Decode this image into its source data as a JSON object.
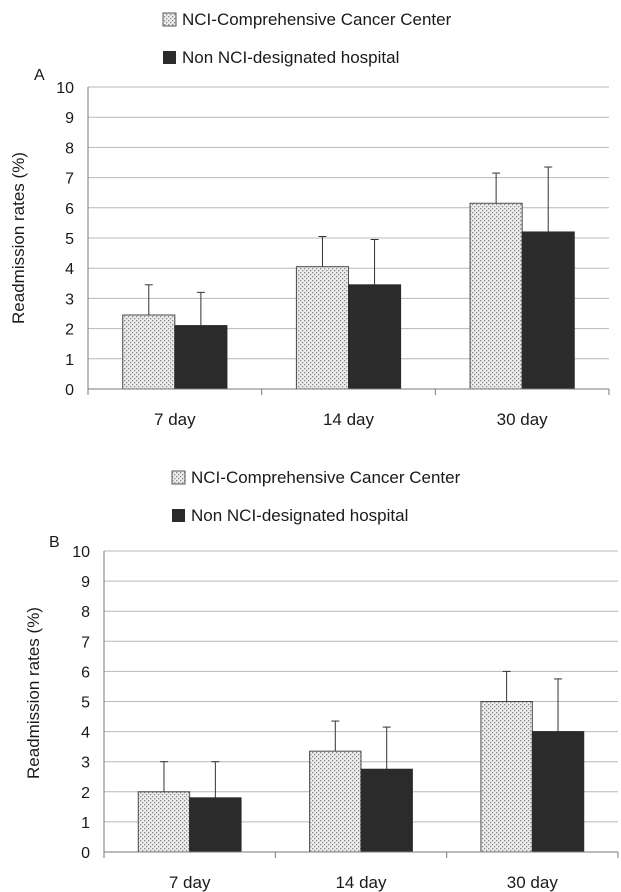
{
  "chart_data": [
    {
      "type": "bar",
      "panel_label": "A",
      "categories": [
        "7 day",
        "14 day",
        "30 day"
      ],
      "series": [
        {
          "name": "NCI-Comprehensive Cancer Center",
          "values": [
            2.45,
            4.05,
            6.15
          ],
          "error": [
            1.0,
            1.0,
            1.0
          ],
          "pattern": "dotted"
        },
        {
          "name": "Non NCI-designated hospital",
          "values": [
            2.1,
            3.45,
            5.2
          ],
          "error": [
            1.1,
            1.5,
            2.15
          ],
          "pattern": "solid"
        }
      ],
      "ylabel": "Readmission rates (%)",
      "xlabel": "",
      "ylim": [
        0,
        10
      ],
      "yticks": [
        "0",
        "1",
        "2",
        "3",
        "4",
        "5",
        "6",
        "7",
        "8",
        "9",
        "10"
      ],
      "grid": true,
      "legend_position": "top"
    },
    {
      "type": "bar",
      "panel_label": "B",
      "categories": [
        "7 day",
        "14 day",
        "30 day"
      ],
      "series": [
        {
          "name": "NCI-Comprehensive Cancer Center",
          "values": [
            2.0,
            3.35,
            5.0
          ],
          "error": [
            1.0,
            1.0,
            1.0
          ],
          "pattern": "dotted"
        },
        {
          "name": "Non NCI-designated hospital",
          "values": [
            1.8,
            2.75,
            4.0
          ],
          "error": [
            1.2,
            1.4,
            1.75
          ],
          "pattern": "solid"
        }
      ],
      "ylabel": "Readmission rates (%)",
      "xlabel": "",
      "ylim": [
        0,
        10
      ],
      "yticks": [
        "0",
        "1",
        "2",
        "3",
        "4",
        "5",
        "6",
        "7",
        "8",
        "9",
        "10"
      ],
      "grid": true,
      "legend_position": "top"
    }
  ],
  "colors": {
    "solid_bar": "#2b2b2b",
    "dotted_bar": "#e2e2e2",
    "grid": "#b8b8b8",
    "axis": "#7a7a7a"
  }
}
